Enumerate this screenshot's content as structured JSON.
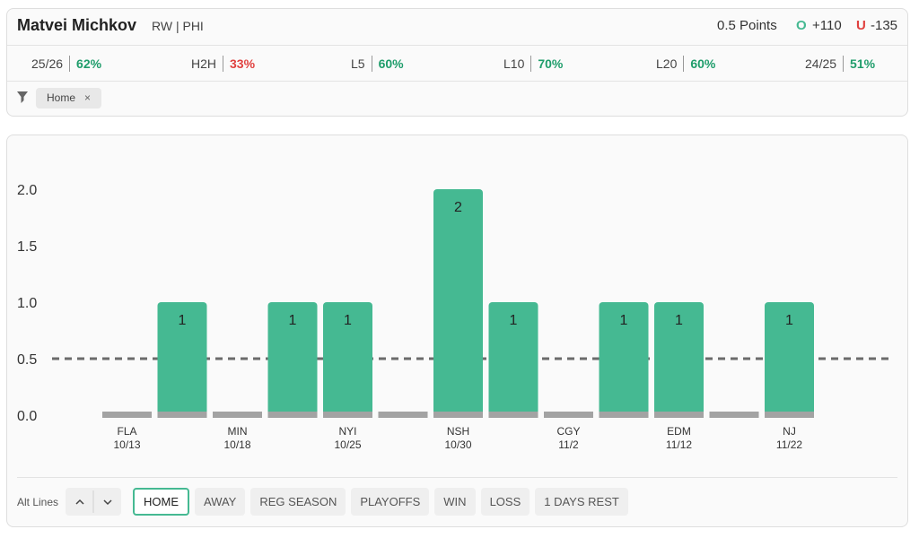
{
  "header": {
    "name": "Matvei Michkov",
    "position": "RW | PHI",
    "line": "0.5 Points",
    "over_label": "O",
    "over_odds": "+110",
    "under_label": "U",
    "under_odds": "-135"
  },
  "stats": [
    {
      "label": "25/26",
      "value": "62%",
      "color": "#1f9d6b"
    },
    {
      "label": "H2H",
      "value": "33%",
      "color": "#e0413f"
    },
    {
      "label": "L5",
      "value": "60%",
      "color": "#1f9d6b"
    },
    {
      "label": "L10",
      "value": "70%",
      "color": "#1f9d6b"
    },
    {
      "label": "L20",
      "value": "60%",
      "color": "#1f9d6b"
    },
    {
      "label": "24/25",
      "value": "51%",
      "color": "#1f9d6b"
    }
  ],
  "filters": [
    "Home"
  ],
  "chart_data": {
    "type": "bar",
    "categories": [
      "FLA",
      null,
      "MIN",
      null,
      "NYI",
      null,
      "NSH",
      null,
      "CGY",
      null,
      "EDM",
      null,
      "NJ"
    ],
    "dates": [
      "10/13",
      null,
      "10/18",
      null,
      "10/25",
      null,
      "10/30",
      null,
      "11/2",
      null,
      "11/12",
      null,
      "11/22"
    ],
    "values": [
      0,
      1,
      0,
      1,
      1,
      0,
      2,
      1,
      0,
      1,
      1,
      0,
      1
    ],
    "color": "#45b992",
    "base_color": "#a3a3a3",
    "ylim": [
      0,
      2.2
    ],
    "yticks": [
      {
        "value": 0,
        "label": "0.0"
      },
      {
        "value": 0.5,
        "label": "0.5"
      },
      {
        "value": 1,
        "label": "1.0"
      },
      {
        "value": 1.5,
        "label": "1.5"
      },
      {
        "value": 2,
        "label": "2.0"
      }
    ],
    "threshold": 0.5,
    "threshold_color": "#6b6b6b"
  },
  "controls": {
    "alt_lines": "Alt Lines",
    "buttons": [
      "HOME",
      "AWAY",
      "REG SEASON",
      "PLAYOFFS",
      "WIN",
      "LOSS",
      "1 DAYS REST"
    ],
    "selected": 0
  }
}
